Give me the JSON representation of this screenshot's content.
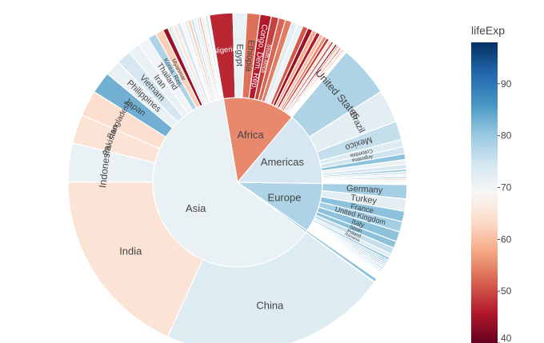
{
  "chart_data": {
    "type": "sunburst",
    "colorbar": {
      "title": "lifeExp",
      "range": [
        40,
        98
      ],
      "ticks": [
        "40",
        "50",
        "60",
        "70",
        "80",
        "90"
      ],
      "colorscale": [
        "#67001f",
        "#b2182b",
        "#d6604d",
        "#f4a582",
        "#fddbc7",
        "#f7f7f7",
        "#d1e5f0",
        "#92c5de",
        "#4393c3",
        "#2166ac",
        "#053061"
      ]
    },
    "continents": [
      {
        "name": "Asia",
        "lifeExp": 71,
        "countries": [
          {
            "name": "China",
            "value": 1318,
            "lifeExp": 73
          },
          {
            "name": "India",
            "value": 1110,
            "lifeExp": 65
          },
          {
            "name": "Indonesia",
            "value": 224,
            "lifeExp": 71
          },
          {
            "name": "Pakistan",
            "value": 169,
            "lifeExp": 65
          },
          {
            "name": "Bangladesh",
            "value": 150,
            "lifeExp": 64
          },
          {
            "name": "Japan",
            "value": 127,
            "lifeExp": 83
          },
          {
            "name": "Philippines",
            "value": 91,
            "lifeExp": 71
          },
          {
            "name": "Vietnam",
            "value": 85,
            "lifeExp": 74
          },
          {
            "name": "Iran",
            "value": 69,
            "lifeExp": 71
          },
          {
            "name": "Thailand",
            "value": 65,
            "lifeExp": 70
          },
          {
            "name": "Korea, Rep.",
            "value": 49,
            "lifeExp": 78
          },
          {
            "name": "Myanmar",
            "value": 47,
            "lifeExp": 62
          },
          {
            "name": "",
            "value": 30,
            "lifeExp": 44
          },
          {
            "name": "",
            "value": 28,
            "lifeExp": 72
          },
          {
            "name": "",
            "value": 27,
            "lifeExp": 66
          },
          {
            "name": "",
            "value": 24,
            "lifeExp": 74
          },
          {
            "name": "",
            "value": 22,
            "lifeExp": 69
          },
          {
            "name": "",
            "value": 20,
            "lifeExp": 72
          },
          {
            "name": "",
            "value": 18,
            "lifeExp": 62
          },
          {
            "name": "",
            "value": 17,
            "lifeExp": 75
          },
          {
            "name": "",
            "value": 16,
            "lifeExp": 71
          },
          {
            "name": "",
            "value": 15,
            "lifeExp": 73
          },
          {
            "name": "",
            "value": 14,
            "lifeExp": 60
          },
          {
            "name": "",
            "value": 13,
            "lifeExp": 72
          },
          {
            "name": "",
            "value": 12,
            "lifeExp": 68
          },
          {
            "name": "",
            "value": 12,
            "lifeExp": 76
          },
          {
            "name": "",
            "value": 11,
            "lifeExp": 70
          }
        ]
      },
      {
        "name": "Africa",
        "lifeExp": 55,
        "countries": [
          {
            "name": "Nigeria",
            "value": 135,
            "lifeExp": 47
          },
          {
            "name": "Egypt",
            "value": 80,
            "lifeExp": 71
          },
          {
            "name": "Ethiopia",
            "value": 76,
            "lifeExp": 53
          },
          {
            "name": "Congo, Dem. Rep.",
            "value": 65,
            "lifeExp": 46
          },
          {
            "name": "South Africa",
            "value": 44,
            "lifeExp": 49
          },
          {
            "name": "",
            "value": 39,
            "lifeExp": 52
          },
          {
            "name": "",
            "value": 38,
            "lifeExp": 54
          },
          {
            "name": "",
            "value": 35,
            "lifeExp": 72
          },
          {
            "name": "",
            "value": 33,
            "lifeExp": 71
          },
          {
            "name": "",
            "value": 31,
            "lifeExp": 51
          },
          {
            "name": "",
            "value": 29,
            "lifeExp": 44
          },
          {
            "name": "",
            "value": 25,
            "lifeExp": 58
          },
          {
            "name": "",
            "value": 24,
            "lifeExp": 46
          },
          {
            "name": "",
            "value": 22,
            "lifeExp": 60
          },
          {
            "name": "",
            "value": 20,
            "lifeExp": 55
          },
          {
            "name": "",
            "value": 18,
            "lifeExp": 48
          },
          {
            "name": "",
            "value": 16,
            "lifeExp": 64
          },
          {
            "name": "",
            "value": 14,
            "lifeExp": 50
          },
          {
            "name": "",
            "value": 13,
            "lifeExp": 73
          },
          {
            "name": "",
            "value": 12,
            "lifeExp": 43
          },
          {
            "name": "",
            "value": 11,
            "lifeExp": 56
          },
          {
            "name": "",
            "value": 10,
            "lifeExp": 62
          },
          {
            "name": "",
            "value": 9,
            "lifeExp": 47
          },
          {
            "name": "",
            "value": 9,
            "lifeExp": 66
          },
          {
            "name": "",
            "value": 8,
            "lifeExp": 52
          },
          {
            "name": "",
            "value": 7,
            "lifeExp": 59
          },
          {
            "name": "",
            "value": 6,
            "lifeExp": 45
          },
          {
            "name": "",
            "value": 5,
            "lifeExp": 68
          }
        ]
      },
      {
        "name": "Americas",
        "lifeExp": 74,
        "countries": [
          {
            "name": "United States",
            "value": 301,
            "lifeExp": 78
          },
          {
            "name": "Brazil",
            "value": 190,
            "lifeExp": 72
          },
          {
            "name": "Mexico",
            "value": 108,
            "lifeExp": 76
          },
          {
            "name": "Colombia",
            "value": 44,
            "lifeExp": 73
          },
          {
            "name": "Argentina",
            "value": 40,
            "lifeExp": 75
          },
          {
            "name": "",
            "value": 33,
            "lifeExp": 81
          },
          {
            "name": "",
            "value": 28,
            "lifeExp": 71
          },
          {
            "name": "",
            "value": 26,
            "lifeExp": 74
          },
          {
            "name": "",
            "value": 16,
            "lifeExp": 79
          },
          {
            "name": "",
            "value": 14,
            "lifeExp": 75
          },
          {
            "name": "",
            "value": 13,
            "lifeExp": 70
          },
          {
            "name": "",
            "value": 11,
            "lifeExp": 78
          },
          {
            "name": "",
            "value": 9,
            "lifeExp": 61
          },
          {
            "name": "",
            "value": 9,
            "lifeExp": 72
          },
          {
            "name": "",
            "value": 7,
            "lifeExp": 71
          },
          {
            "name": "",
            "value": 6,
            "lifeExp": 73
          },
          {
            "name": "",
            "value": 5,
            "lifeExp": 76
          }
        ]
      },
      {
        "name": "Europe",
        "lifeExp": 78,
        "countries": [
          {
            "name": "Germany",
            "value": 82,
            "lifeExp": 79
          },
          {
            "name": "Turkey",
            "value": 71,
            "lifeExp": 72
          },
          {
            "name": "France",
            "value": 61,
            "lifeExp": 81
          },
          {
            "name": "United Kingdom",
            "value": 60,
            "lifeExp": 79
          },
          {
            "name": "Italy",
            "value": 58,
            "lifeExp": 81
          },
          {
            "name": "Spain",
            "value": 40,
            "lifeExp": 81
          },
          {
            "name": "Poland",
            "value": 38,
            "lifeExp": 76
          },
          {
            "name": "Romania",
            "value": 22,
            "lifeExp": 73
          },
          {
            "name": "",
            "value": 16,
            "lifeExp": 80
          },
          {
            "name": "",
            "value": 11,
            "lifeExp": 79
          },
          {
            "name": "",
            "value": 10,
            "lifeExp": 80
          },
          {
            "name": "",
            "value": 10,
            "lifeExp": 79
          },
          {
            "name": "",
            "value": 10,
            "lifeExp": 77
          },
          {
            "name": "",
            "value": 10,
            "lifeExp": 74
          },
          {
            "name": "",
            "value": 9,
            "lifeExp": 81
          },
          {
            "name": "",
            "value": 9,
            "lifeExp": 73
          },
          {
            "name": "",
            "value": 8,
            "lifeExp": 80
          },
          {
            "name": "",
            "value": 7,
            "lifeExp": 74
          },
          {
            "name": "",
            "value": 6,
            "lifeExp": 81
          },
          {
            "name": "",
            "value": 5,
            "lifeExp": 79
          },
          {
            "name": "",
            "value": 5,
            "lifeExp": 79
          },
          {
            "name": "",
            "value": 5,
            "lifeExp": 76
          },
          {
            "name": "",
            "value": 4,
            "lifeExp": 75
          },
          {
            "name": "",
            "value": 4,
            "lifeExp": 77
          },
          {
            "name": "",
            "value": 3,
            "lifeExp": 72
          },
          {
            "name": "",
            "value": 3,
            "lifeExp": 78
          },
          {
            "name": "",
            "value": 2,
            "lifeExp": 80
          },
          {
            "name": "",
            "value": 2,
            "lifeExp": 74
          },
          {
            "name": "",
            "value": 2,
            "lifeExp": 79
          },
          {
            "name": "",
            "value": 1,
            "lifeExp": 81
          }
        ]
      },
      {
        "name": "",
        "lifeExp": 81,
        "countries": [
          {
            "name": "",
            "value": 20,
            "lifeExp": 81
          },
          {
            "name": "",
            "value": 4,
            "lifeExp": 80
          }
        ]
      }
    ]
  }
}
